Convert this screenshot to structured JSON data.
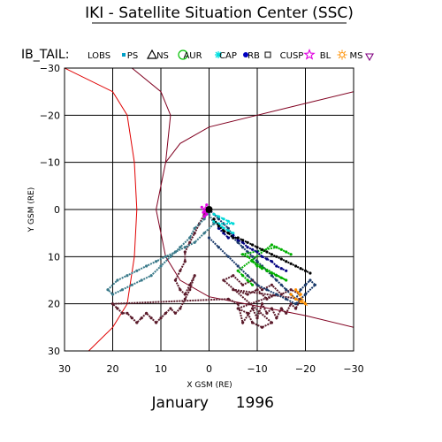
{
  "header": {
    "title": "IKI - Satellite Situation Center (SSC)",
    "dataset_label": "IB_TAIL:"
  },
  "footer": {
    "month": "January",
    "year": "1996"
  },
  "legend": [
    {
      "label": "LOBS",
      "symbol": "dot",
      "color": "#00a0c8"
    },
    {
      "label": "PS",
      "symbol": "triangle",
      "color": "#000000"
    },
    {
      "label": "NS",
      "symbol": "circle",
      "color": "#00c000"
    },
    {
      "label": "AUR",
      "symbol": "asterisk",
      "color": "#00e0e0"
    },
    {
      "label": "CAP",
      "symbol": "filled-circle",
      "color": "#0000c0"
    },
    {
      "label": "RB",
      "symbol": "square",
      "color": "#000000"
    },
    {
      "label": "CUSP",
      "symbol": "star",
      "color": "#e000e0"
    },
    {
      "label": "BL",
      "symbol": "sun",
      "color": "#ff9000"
    },
    {
      "label": "MS",
      "symbol": "down-triangle",
      "color": "#800080"
    }
  ],
  "chart_data": {
    "type": "scatter",
    "xlabel": "X GSM (RE)",
    "ylabel": "Y GSM (RE)",
    "xlim": [
      30,
      -30
    ],
    "ylim": [
      -30,
      30
    ],
    "y_inverted": true,
    "xticks": [
      30,
      20,
      10,
      0,
      -10,
      -20,
      -30
    ],
    "yticks": [
      -30,
      -20,
      -10,
      0,
      10,
      20,
      30
    ],
    "xtick_labels": [
      "30",
      "20",
      "10",
      "0",
      "−10",
      "−20",
      "−30"
    ],
    "ytick_labels": [
      "−30",
      "−20",
      "−10",
      "0",
      "10",
      "20",
      "30"
    ],
    "grid": true,
    "earth": {
      "x": 0,
      "y": 0
    },
    "boundaries": [
      {
        "name": "bow shock",
        "color": "#e00000",
        "points": [
          [
            30,
            -30
          ],
          [
            20,
            -25
          ],
          [
            17,
            -20
          ],
          [
            15.5,
            -10
          ],
          [
            15,
            0
          ],
          [
            15.5,
            10
          ],
          [
            17,
            20
          ],
          [
            20,
            25
          ],
          [
            25,
            30
          ]
        ]
      },
      {
        "name": "magnetopause",
        "color": "#800020",
        "points": [
          [
            16,
            -30
          ],
          [
            10,
            -25
          ],
          [
            8,
            -20
          ],
          [
            9,
            -10
          ],
          [
            11,
            0
          ],
          [
            9,
            10
          ],
          [
            6,
            15
          ],
          [
            0,
            18.5
          ],
          [
            -10,
            20.5
          ],
          [
            -20,
            22.5
          ],
          [
            -30,
            25
          ]
        ]
      },
      {
        "name": "magnetopause",
        "color": "#800020",
        "points": [
          [
            -30,
            -25
          ],
          [
            -20,
            -22.5
          ],
          [
            -10,
            -20
          ],
          [
            0,
            -17.5
          ],
          [
            6,
            -14
          ],
          [
            9,
            -10
          ]
        ]
      }
    ],
    "series": [
      {
        "name": "MS",
        "color": "#5a1a2a",
        "points": [
          [
            0,
            0
          ],
          [
            1,
            1
          ],
          [
            2,
            3
          ],
          [
            3,
            5
          ],
          [
            4,
            7
          ],
          [
            5,
            9
          ],
          [
            5,
            11
          ],
          [
            6,
            13
          ],
          [
            7,
            15
          ],
          [
            6,
            17
          ],
          [
            5,
            18
          ],
          [
            4,
            16
          ],
          [
            3,
            14
          ],
          [
            4,
            17
          ],
          [
            5,
            19
          ],
          [
            6,
            21
          ],
          [
            7,
            22
          ],
          [
            8,
            21
          ],
          [
            9,
            22
          ],
          [
            10,
            23
          ],
          [
            11,
            24
          ],
          [
            12,
            23
          ],
          [
            13,
            22
          ],
          [
            14,
            23
          ],
          [
            15,
            24
          ],
          [
            16,
            23
          ],
          [
            17,
            22
          ],
          [
            18,
            22
          ],
          [
            19,
            21
          ],
          [
            20,
            20
          ],
          [
            -4,
            19
          ],
          [
            -6,
            20
          ],
          [
            -7,
            24
          ],
          [
            -9,
            21
          ],
          [
            -10,
            23
          ],
          [
            -11,
            20
          ],
          [
            -12,
            22
          ],
          [
            -13,
            21
          ],
          [
            -14,
            23
          ],
          [
            -15,
            21
          ],
          [
            -16,
            22
          ],
          [
            -17,
            20
          ],
          [
            -18,
            21
          ],
          [
            -19,
            19
          ],
          [
            -5,
            17
          ],
          [
            -8,
            18
          ],
          [
            -10,
            17
          ],
          [
            -12,
            19
          ],
          [
            -14,
            18
          ],
          [
            -6,
            21
          ],
          [
            -8,
            22
          ],
          [
            -9,
            24
          ],
          [
            -11,
            25
          ],
          [
            -13,
            24
          ],
          [
            -3,
            15
          ],
          [
            -5,
            14
          ],
          [
            -7,
            16
          ],
          [
            -9,
            15
          ],
          [
            -11,
            17
          ],
          [
            -13,
            16
          ],
          [
            -15,
            18
          ],
          [
            -17,
            17
          ],
          [
            -19,
            18
          ]
        ]
      },
      {
        "name": "LOBS",
        "color": "#3a7a8a",
        "points": [
          [
            0,
            0
          ],
          [
            1,
            2
          ],
          [
            3,
            4
          ],
          [
            4,
            6
          ],
          [
            6,
            8
          ],
          [
            8,
            10
          ],
          [
            10,
            12
          ],
          [
            12,
            14
          ],
          [
            14,
            15
          ],
          [
            16,
            16
          ],
          [
            18,
            17
          ],
          [
            20,
            18
          ],
          [
            21,
            17
          ],
          [
            19,
            15
          ],
          [
            17,
            14
          ],
          [
            15,
            13
          ],
          [
            13,
            12
          ],
          [
            11,
            11
          ],
          [
            9,
            10
          ],
          [
            7,
            9
          ],
          [
            5,
            8
          ],
          [
            3,
            7
          ],
          [
            1,
            5
          ],
          [
            -1,
            3
          ],
          [
            0,
            1
          ]
        ]
      },
      {
        "name": "PS",
        "color": "#1a3a6a",
        "points": [
          [
            0,
            0
          ],
          [
            -1,
            1
          ],
          [
            -2,
            2
          ],
          [
            -3,
            3
          ],
          [
            -4,
            4
          ],
          [
            -5,
            6
          ],
          [
            -6,
            7
          ],
          [
            -7,
            8
          ],
          [
            -8,
            9
          ],
          [
            -9,
            10
          ],
          [
            -10,
            11
          ],
          [
            -11,
            12
          ],
          [
            -12,
            13
          ],
          [
            -13,
            14
          ],
          [
            -14,
            15
          ],
          [
            -15,
            16
          ],
          [
            -16,
            17
          ],
          [
            -17,
            18
          ],
          [
            -18,
            19
          ],
          [
            -19,
            17
          ],
          [
            -20,
            16
          ],
          [
            -21,
            15
          ],
          [
            -22,
            16
          ],
          [
            -20,
            18
          ],
          [
            -18,
            20
          ],
          [
            -16,
            19
          ],
          [
            -14,
            18
          ],
          [
            -12,
            17
          ],
          [
            -10,
            16
          ],
          [
            -8,
            14
          ],
          [
            -6,
            12
          ],
          [
            -4,
            10
          ],
          [
            -2,
            8
          ],
          [
            0,
            6
          ]
        ]
      },
      {
        "name": "NS",
        "color": "#00b000",
        "points": [
          [
            -12,
            13
          ],
          [
            -13,
            13.5
          ],
          [
            -14,
            14
          ],
          [
            -15,
            14.5
          ],
          [
            -16,
            15
          ],
          [
            -9,
            11
          ],
          [
            -10,
            12
          ],
          [
            -11,
            12.5
          ],
          [
            -8,
            10
          ],
          [
            -7,
            9.5
          ],
          [
            -14,
            8
          ],
          [
            -15,
            8.5
          ],
          [
            -16,
            9
          ],
          [
            -17,
            9.5
          ],
          [
            -13,
            7.5
          ],
          [
            -6,
            13
          ],
          [
            -7,
            14
          ],
          [
            -8,
            15
          ],
          [
            -9,
            16
          ]
        ]
      },
      {
        "name": "AUR",
        "color": "#00d8d8",
        "points": [
          [
            -1,
            1
          ],
          [
            -2,
            1.5
          ],
          [
            -3,
            2
          ],
          [
            -4,
            2.5
          ],
          [
            -5,
            3
          ],
          [
            -2,
            3
          ],
          [
            -3,
            4
          ],
          [
            -1,
            2.5
          ],
          [
            -4,
            4.5
          ],
          [
            -5,
            5
          ]
        ]
      },
      {
        "name": "CAP",
        "color": "#000080",
        "points": [
          [
            -2,
            4
          ],
          [
            -3,
            5
          ],
          [
            -4,
            6
          ],
          [
            -5,
            5.5
          ],
          [
            -6,
            6.5
          ],
          [
            -7,
            7
          ],
          [
            -8,
            8
          ],
          [
            -9,
            8.5
          ],
          [
            -10,
            9
          ],
          [
            -11,
            10
          ],
          [
            -12,
            10.5
          ],
          [
            -13,
            11
          ],
          [
            -14,
            12
          ],
          [
            -15,
            12.5
          ],
          [
            -16,
            13
          ]
        ]
      },
      {
        "name": "RB",
        "color": "#000000",
        "points": [
          [
            -1,
            2
          ],
          [
            -2,
            3.5
          ],
          [
            -3,
            4.5
          ],
          [
            -4,
            5
          ],
          [
            -5,
            6
          ],
          [
            -6,
            6
          ],
          [
            -7,
            6.5
          ],
          [
            -8,
            7
          ],
          [
            -9,
            7.5
          ],
          [
            -10,
            8
          ],
          [
            -11,
            8.5
          ],
          [
            -12,
            9
          ],
          [
            -13,
            9.5
          ],
          [
            -14,
            10
          ],
          [
            -15,
            10.5
          ],
          [
            -16,
            11
          ],
          [
            -17,
            11.5
          ],
          [
            -18,
            12
          ],
          [
            -19,
            12.5
          ],
          [
            -20,
            13
          ],
          [
            -21,
            13.5
          ]
        ]
      },
      {
        "name": "CUSP",
        "color": "#e000e0",
        "points": [
          [
            1,
            0
          ],
          [
            1.5,
            -0.5
          ],
          [
            0.5,
            1
          ],
          [
            1,
            1.5
          ],
          [
            0.5,
            -1
          ],
          [
            1.2,
            0.6
          ]
        ]
      },
      {
        "name": "BL",
        "color": "#ff9000",
        "points": [
          [
            -17,
            18
          ],
          [
            -18,
            19
          ],
          [
            -19,
            19.5
          ],
          [
            -20,
            20
          ],
          [
            -18,
            17
          ],
          [
            -19,
            18
          ]
        ]
      }
    ]
  }
}
